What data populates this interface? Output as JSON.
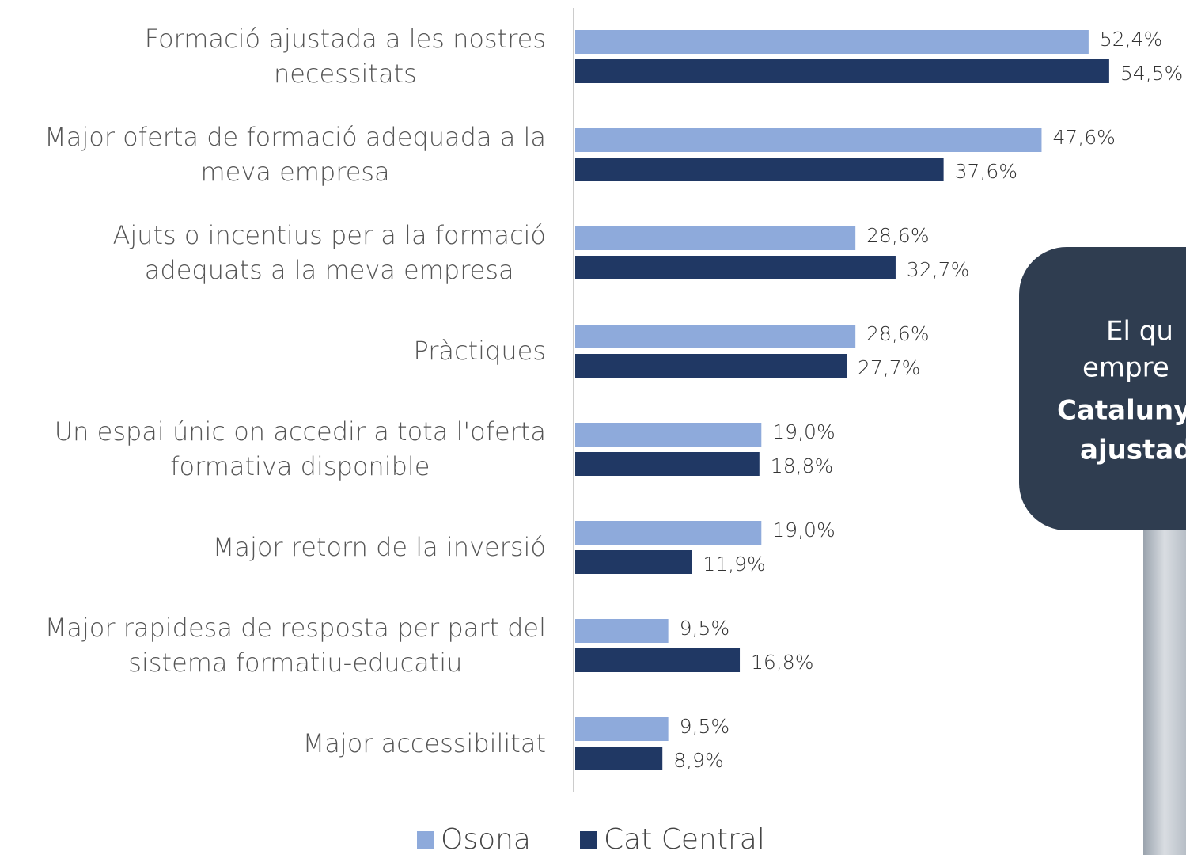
{
  "chart_data": {
    "type": "hbar",
    "categories": [
      "Formació ajustada a les nostres\nnecessitats",
      "Major oferta de formació adequada a la\nmeva empresa",
      "Ajuts o incentius per a la formació\nadequats a la meva empresa",
      "Pràctiques",
      "Un espai únic on accedir a tota l'oferta\nformativa disponible",
      "Major retorn de la inversió",
      "Major rapidesa de resposta per part del\nsistema formatiu-educatiu",
      "Major accessibilitat"
    ],
    "series": [
      {
        "name": "Osona",
        "color": "#8eaadb",
        "values": [
          52.4,
          47.6,
          28.6,
          28.6,
          19.0,
          19.0,
          9.5,
          9.5
        ],
        "value_labels": [
          "52,4%",
          "47,6%",
          "28,6%",
          "28,6%",
          "19,0%",
          "19,0%",
          "9,5%",
          "9,5%"
        ]
      },
      {
        "name": "Cat Central",
        "color": "#203864",
        "values": [
          54.5,
          37.6,
          32.7,
          27.7,
          18.8,
          11.9,
          16.8,
          8.9
        ],
        "value_labels": [
          "54,5%",
          "37,6%",
          "32,7%",
          "27,7%",
          "18,8%",
          "11,9%",
          "16,8%",
          "8,9%"
        ]
      }
    ],
    "xlim": [
      0,
      60
    ],
    "legend": "bottom"
  },
  "callout": {
    "lines": [
      "El qu",
      "empre",
      "Cataluny",
      "ajustad"
    ]
  }
}
